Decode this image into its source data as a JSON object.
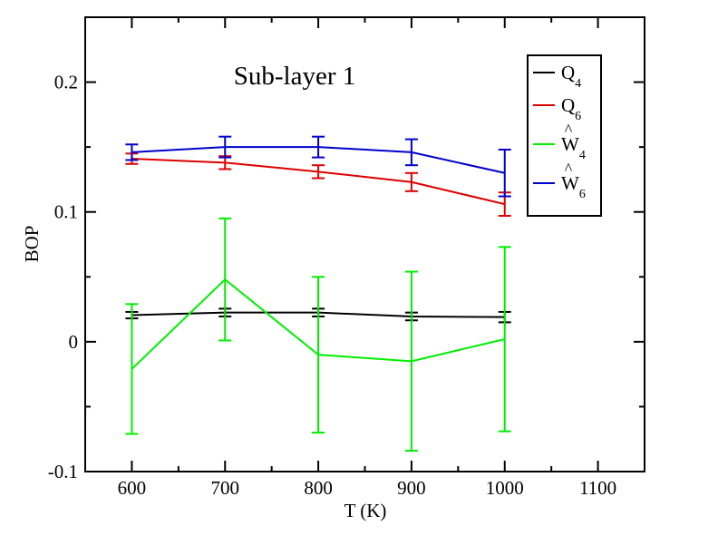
{
  "chart_data": {
    "type": "line",
    "title": "Sub-layer 1",
    "xlabel": "T (K)",
    "ylabel": "BOP",
    "xlim": [
      550,
      1150
    ],
    "ylim": [
      -0.1,
      0.25
    ],
    "xticks": [
      600,
      700,
      800,
      900,
      1000,
      1100
    ],
    "xtick_labels": [
      "600",
      "700",
      "800",
      "900",
      "1000",
      "1100"
    ],
    "yticks": [
      -0.1,
      0,
      0.1,
      0.2
    ],
    "ytick_labels": [
      "-0.1",
      "0",
      "0.1",
      "0.2"
    ],
    "grid": false,
    "legend_position": "top-right",
    "x": [
      600,
      700,
      800,
      900,
      1000
    ],
    "series": [
      {
        "name": "Q4",
        "label_base": "Q",
        "label_sub": "4",
        "label_hat": "",
        "color": "#000000",
        "values": [
          0.0205,
          0.0225,
          0.0225,
          0.0195,
          0.019
        ],
        "errors": [
          0.0025,
          0.003,
          0.003,
          0.003,
          0.004
        ]
      },
      {
        "name": "Q6",
        "label_base": "Q",
        "label_sub": "6",
        "label_hat": "",
        "color": "#dd0000",
        "values": [
          0.141,
          0.138,
          0.131,
          0.123,
          0.106
        ],
        "errors": [
          0.004,
          0.005,
          0.005,
          0.007,
          0.009
        ]
      },
      {
        "name": "W4 hat",
        "label_base": "W",
        "label_sub": "4",
        "label_hat": "^",
        "color": "#00ee00",
        "values": [
          -0.021,
          0.048,
          -0.01,
          -0.015,
          0.002
        ],
        "errors": [
          0.05,
          0.047,
          0.06,
          0.069,
          0.071
        ]
      },
      {
        "name": "W6 hat",
        "label_base": "W",
        "label_sub": "6",
        "label_hat": "^",
        "color": "#0000cc",
        "values": [
          0.146,
          0.15,
          0.15,
          0.146,
          0.13
        ],
        "errors": [
          0.006,
          0.008,
          0.008,
          0.01,
          0.018
        ]
      }
    ]
  }
}
